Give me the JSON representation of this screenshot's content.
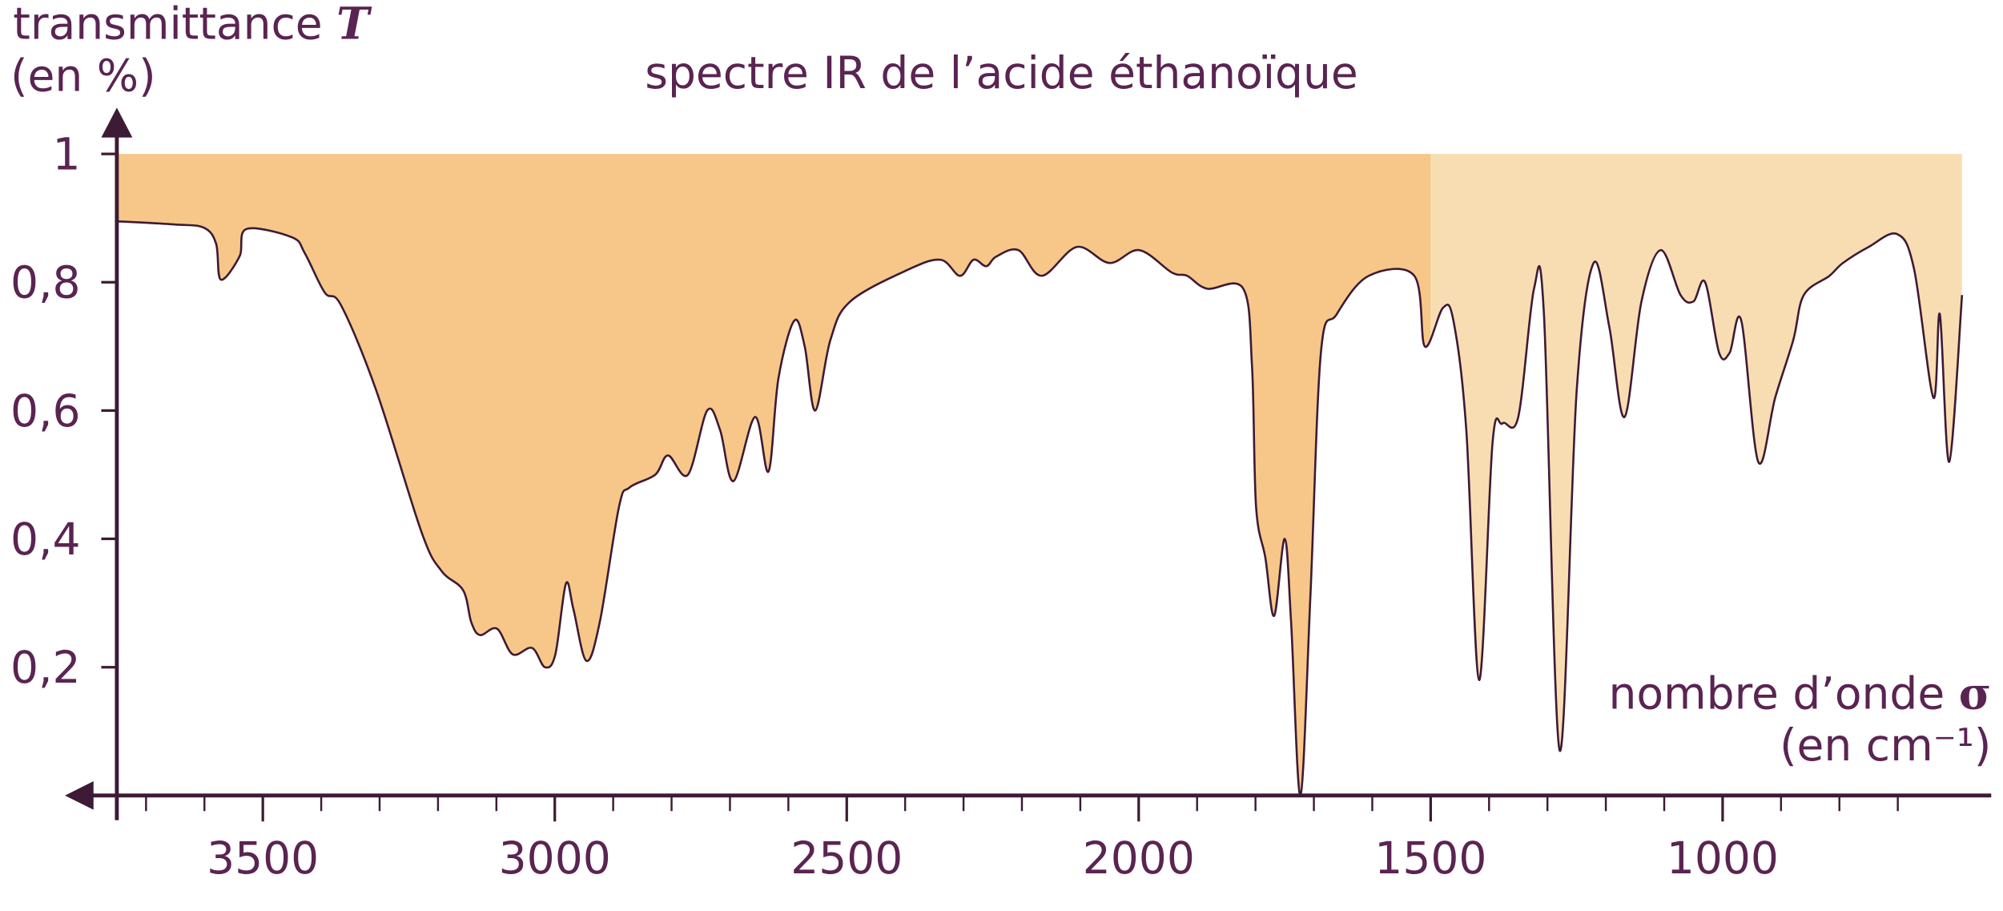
{
  "chart_data": {
    "type": "line",
    "title": "spectre IR de l’acide éthanoïque",
    "y_label": "transmittance",
    "y_label_symbol": "T",
    "y_label_unit": "(en %)",
    "x_label": "nombre d’onde",
    "x_label_symbol": "σ",
    "x_label_unit": "(en cm⁻¹)",
    "xlim": [
      3750,
      540
    ],
    "ylim": [
      0,
      1.07
    ],
    "xticks": [
      3500,
      3000,
      2500,
      2000,
      1500,
      1000
    ],
    "xticks_minor": [
      3700,
      3600,
      3400,
      3300,
      3200,
      3100,
      2900,
      2800,
      2700,
      2600,
      2400,
      2300,
      2200,
      2100,
      1900,
      1800,
      1700,
      1600,
      1400,
      1300,
      1200,
      1100,
      900,
      800,
      700
    ],
    "yticks": [
      {
        "value": 0.2,
        "label": "0,2"
      },
      {
        "value": 0.4,
        "label": "0,4"
      },
      {
        "value": 0.6,
        "label": "0,6"
      },
      {
        "value": 0.8,
        "label": "0,8"
      },
      1
    ],
    "area_top": 1,
    "regions": [
      {
        "from": 3750,
        "to": 1500,
        "color": "#f6c788"
      },
      {
        "from": 1500,
        "to": 590,
        "color": "#f9ddb2"
      }
    ],
    "line_color": "#3d1a35",
    "x": [
      3750,
      3650,
      3601,
      3580,
      3572,
      3540,
      3528,
      3450,
      3428,
      3394,
      3366,
      3306,
      3228,
      3194,
      3157,
      3143,
      3128,
      3099,
      3072,
      3039,
      3017,
      2999,
      2981,
      2968,
      2946,
      2923,
      2890,
      2872,
      2828,
      2806,
      2772,
      2739,
      2717,
      2694,
      2657,
      2634,
      2617,
      2590,
      2572,
      2554,
      2528,
      2494,
      2394,
      2339,
      2306,
      2283,
      2261,
      2244,
      2206,
      2166,
      2106,
      2050,
      1999,
      1943,
      1917,
      1883,
      1821,
      1806,
      1799,
      1783,
      1768,
      1750,
      1739,
      1723,
      1706,
      1688,
      1661,
      1606,
      1528,
      1510,
      1479,
      1461,
      1439,
      1417,
      1394,
      1377,
      1350,
      1323,
      1306,
      1279,
      1250,
      1221,
      1194,
      1168,
      1139,
      1106,
      1072,
      1050,
      1030,
      1006,
      988,
      968,
      939,
      910,
      879,
      861,
      817,
      794,
      750,
      701,
      672,
      639,
      628,
      612,
      590
    ],
    "values": [
      0.895,
      0.89,
      0.885,
      0.86,
      0.804,
      0.84,
      0.883,
      0.87,
      0.845,
      0.784,
      0.764,
      0.632,
      0.41,
      0.35,
      0.32,
      0.27,
      0.25,
      0.26,
      0.22,
      0.23,
      0.2,
      0.22,
      0.33,
      0.29,
      0.21,
      0.27,
      0.45,
      0.48,
      0.5,
      0.53,
      0.5,
      0.6,
      0.57,
      0.49,
      0.59,
      0.505,
      0.65,
      0.74,
      0.7,
      0.6,
      0.71,
      0.77,
      0.82,
      0.835,
      0.81,
      0.835,
      0.825,
      0.84,
      0.85,
      0.81,
      0.855,
      0.83,
      0.85,
      0.815,
      0.81,
      0.79,
      0.79,
      0.67,
      0.45,
      0.37,
      0.28,
      0.4,
      0.27,
      0.0,
      0.31,
      0.69,
      0.75,
      0.81,
      0.81,
      0.7,
      0.76,
      0.74,
      0.57,
      0.18,
      0.55,
      0.58,
      0.59,
      0.79,
      0.75,
      0.07,
      0.63,
      0.83,
      0.73,
      0.59,
      0.77,
      0.85,
      0.78,
      0.77,
      0.8,
      0.69,
      0.69,
      0.74,
      0.52,
      0.62,
      0.71,
      0.78,
      0.81,
      0.83,
      0.855,
      0.875,
      0.82,
      0.62,
      0.75,
      0.52,
      0.78
    ]
  }
}
